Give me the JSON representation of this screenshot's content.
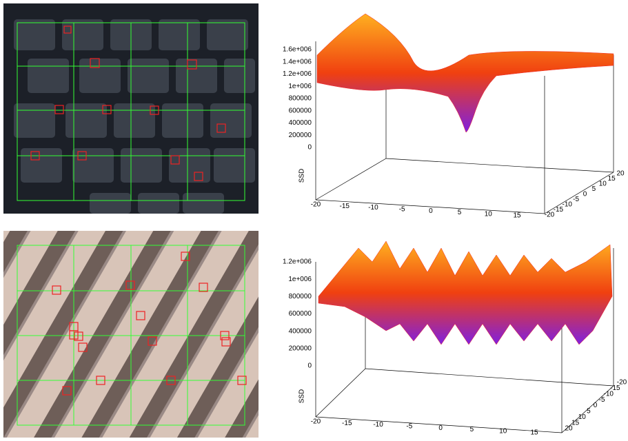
{
  "panels": [
    {
      "zlabel": "SSD",
      "zticks": [
        "1.6e+006",
        "1.4e+006",
        "1.2e+006",
        "1e+006",
        "800000",
        "600000",
        "400000",
        "200000",
        "0"
      ],
      "xticks": [
        "-20",
        "-15",
        "-10",
        "-5",
        "0",
        "5",
        "10",
        "15"
      ],
      "yticks": [
        "-20",
        "-15",
        "-10",
        "-5",
        "0",
        "5",
        "10",
        "15",
        "20"
      ]
    },
    {
      "zlabel": "SSD",
      "zticks": [
        "1.2e+006",
        "1e+006",
        "800000",
        "600000",
        "400000",
        "200000",
        "0"
      ],
      "xticks": [
        "-20",
        "-15",
        "-10",
        "-5",
        "0",
        "5",
        "10",
        "15"
      ],
      "yticks": [
        "20",
        "15",
        "10",
        "5",
        "0",
        "-5",
        "-10",
        "-15",
        "-20"
      ]
    }
  ]
}
